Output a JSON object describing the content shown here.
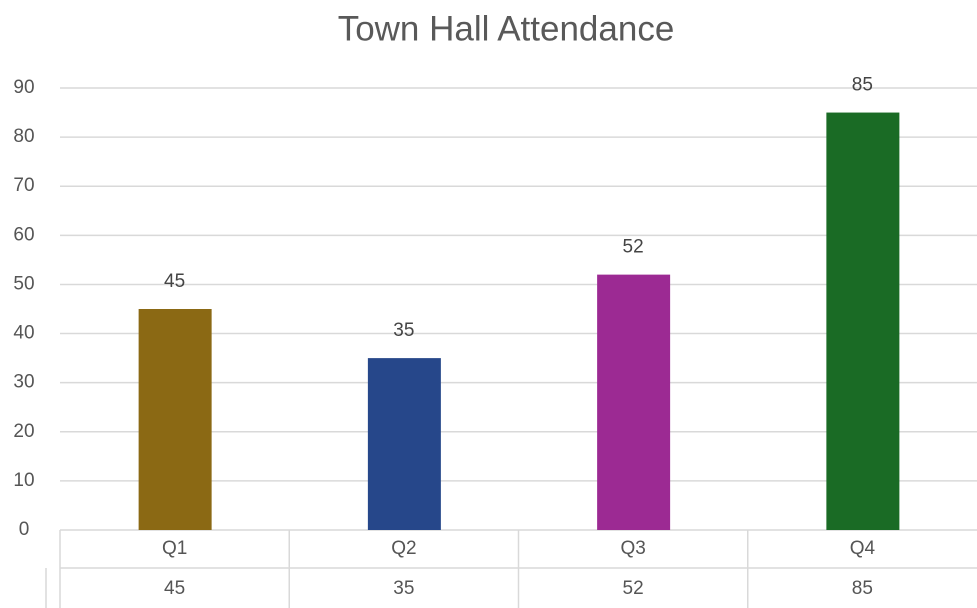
{
  "chart_data": {
    "type": "bar",
    "title": "Town Hall Attendance",
    "categories": [
      "Q1",
      "Q2",
      "Q3",
      "Q4"
    ],
    "values": [
      45,
      35,
      52,
      85
    ],
    "colors": [
      "#8b6914",
      "#26478a",
      "#9c2a93",
      "#1a6b25"
    ],
    "ylim": [
      0,
      90
    ],
    "yticks": [
      0,
      10,
      20,
      30,
      40,
      50,
      60,
      70,
      80,
      90
    ],
    "grid": true,
    "data_table": true
  }
}
